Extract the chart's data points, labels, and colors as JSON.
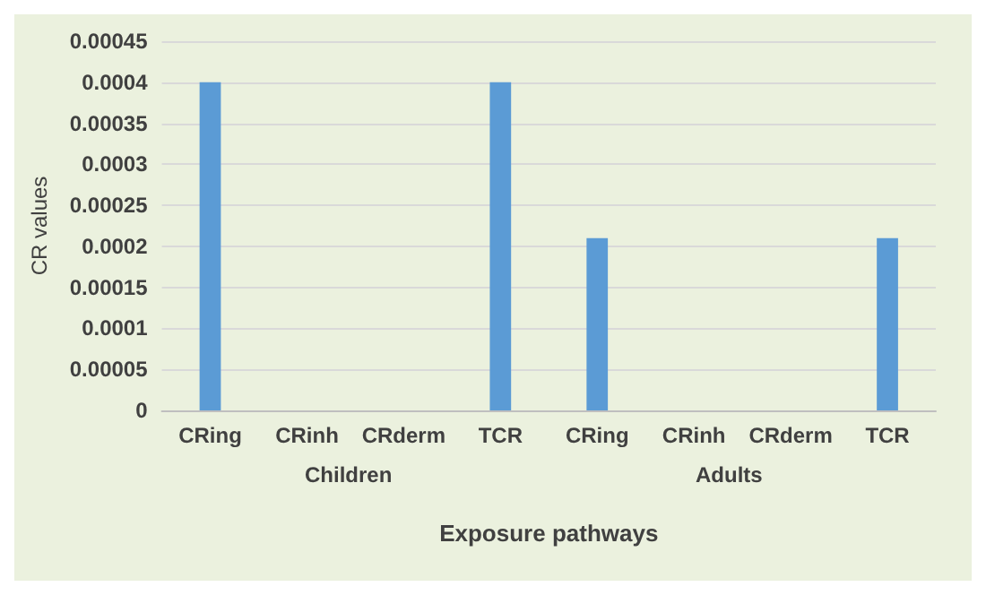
{
  "chart_data": {
    "type": "bar",
    "xlabel": "Exposure pathways",
    "ylabel": "CR values",
    "categories": [
      "CRing",
      "CRinh",
      "CRderm",
      "TCR",
      "CRing",
      "CRinh",
      "CRderm",
      "TCR"
    ],
    "values": [
      0.0004,
      0,
      0,
      0.0004,
      0.00021,
      0,
      0,
      0.00021
    ],
    "color": "#5b9bd5",
    "annotations": [
      "Children",
      "Adults"
    ],
    "ylim": [
      0,
      0.00045
    ],
    "yticks": [
      0,
      {
        "value": 5e-05,
        "label": "0.00005"
      },
      0.0001,
      0.00015,
      0.0002,
      0.00025,
      0.0003,
      0.00035,
      0.0004,
      0.00045
    ],
    "grid": "y"
  }
}
